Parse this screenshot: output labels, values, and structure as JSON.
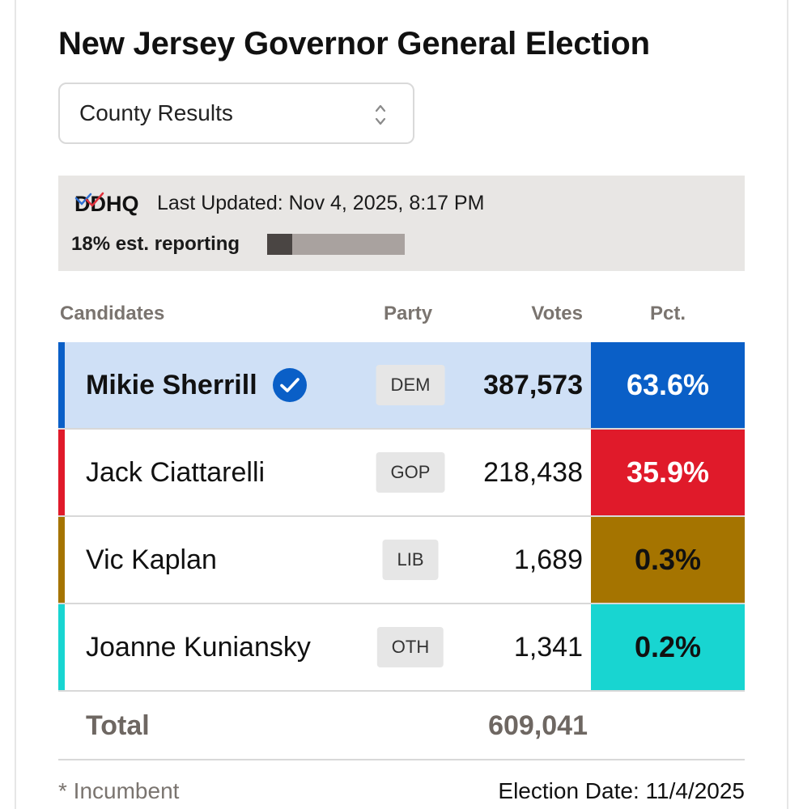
{
  "header": {
    "title": "New Jersey Governor General Election"
  },
  "selector": {
    "value": "County Results"
  },
  "status": {
    "logo_text": "DDHQ",
    "updated": "Last Updated: Nov 4, 2025, 8:17 PM",
    "reporting": "18% est. reporting",
    "reporting_fraction": 0.18
  },
  "table": {
    "headers": {
      "candidates": "Candidates",
      "party": "Party",
      "votes": "Votes",
      "pct": "Pct."
    },
    "rows": [
      {
        "name": "Mikie Sherrill",
        "party": "DEM",
        "votes": "387,573",
        "pct": "63.6%",
        "winner": true,
        "color": "#0a5fc7",
        "pct_text_color": "#ffffff"
      },
      {
        "name": "Jack Ciattarelli",
        "party": "GOP",
        "votes": "218,438",
        "pct": "35.9%",
        "winner": false,
        "color": "#e01a2a",
        "pct_text_color": "#ffffff"
      },
      {
        "name": "Vic Kaplan",
        "party": "LIB",
        "votes": "1,689",
        "pct": "0.3%",
        "winner": false,
        "color": "#a57400",
        "pct_text_color": "#111111"
      },
      {
        "name": "Joanne Kuniansky",
        "party": "OTH",
        "votes": "1,341",
        "pct": "0.2%",
        "winner": false,
        "color": "#18d5d1",
        "pct_text_color": "#111111"
      }
    ],
    "total_label": "Total",
    "total_votes": "609,041"
  },
  "footer": {
    "incumbent_note": "* Incumbent",
    "election_date": "Election Date: 11/4/2025"
  }
}
